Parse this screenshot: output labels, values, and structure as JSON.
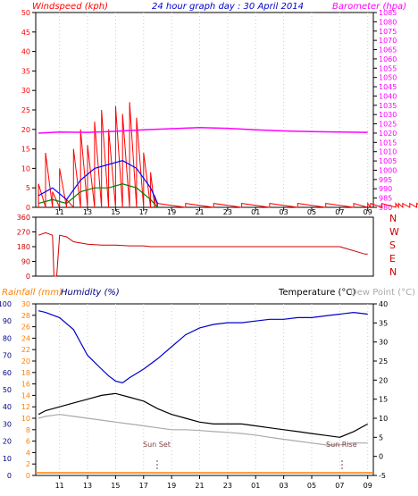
{
  "header": {
    "left_title": "Windspeed (kph)",
    "center_title": "24 hour graph day : 30 April 2014",
    "right_title": "Barometer (hpa)"
  },
  "lower_header": {
    "rainfall": "Rainfall (mm)",
    "humidity": "Humidity (%)",
    "temperature": "Temperature (°C)",
    "dewpoint": "Dew Point (°C)"
  },
  "annotations": {
    "sunset": "Sun Set",
    "sunrise": "Sun Rise"
  },
  "colors": {
    "wind": "#ff0000",
    "gust": "#0000ff",
    "avg": "#008000",
    "barometer": "#ff00ff",
    "direction": "#cc0000",
    "humidity": "#0000cc",
    "temperature": "#000000",
    "dewpoint": "#aaaaaa",
    "rainfall": "#ff8000",
    "axis_left": "#ff0000",
    "axis_right": "#ff00ff",
    "axis_dir": "#cc0000",
    "axis_hum": "#000080",
    "axis_rain": "#ff8000"
  },
  "chart_data": [
    {
      "type": "line",
      "title": "24 hour graph day : 30 April 2014",
      "ylabel": "Windspeed (kph)",
      "y2label": "Barometer (hpa)",
      "xticks": [
        "11",
        "13",
        "15",
        "17",
        "19",
        "21",
        "23",
        "01",
        "03",
        "05",
        "07",
        "09"
      ],
      "ylim": [
        0,
        50
      ],
      "yticks": [
        0,
        5,
        10,
        15,
        20,
        25,
        30,
        35,
        40,
        45,
        50
      ],
      "y2lim": [
        980,
        1085
      ],
      "y2ticks": [
        980,
        985,
        990,
        995,
        1000,
        1005,
        1010,
        1015,
        1020,
        1025,
        1030,
        1035,
        1040,
        1045,
        1050,
        1055,
        1060,
        1065,
        1070,
        1075,
        1080,
        1085
      ],
      "series": [
        {
          "name": "Windspeed (kph)",
          "x": [
            9.5,
            10,
            10.5,
            11,
            11.5,
            12,
            12.5,
            13,
            13.5,
            14,
            14.5,
            15,
            15.5,
            16,
            16.5,
            17,
            17.5,
            17.8,
            18,
            20,
            22,
            24,
            26,
            28,
            30,
            32,
            33,
            33.2,
            34,
            35,
            35.2,
            35.5,
            36,
            36.5,
            37,
            37.5,
            38,
            38.5,
            39.5,
            40,
            40.5,
            41,
            41.5,
            42,
            43,
            44,
            45,
            46,
            47,
            48,
            49,
            50,
            51,
            52,
            53,
            54,
            55,
            56,
            57,
            58,
            59,
            60,
            61,
            62,
            63,
            64,
            65,
            66,
            67,
            68,
            69,
            70,
            71,
            72,
            73,
            74,
            75,
            76,
            77,
            78,
            79,
            80,
            81,
            82,
            83,
            84,
            85,
            86,
            87,
            88,
            89,
            90,
            91,
            92,
            93
          ],
          "y": [
            6,
            14,
            4,
            10,
            2,
            15,
            20,
            16,
            22,
            25,
            20,
            26,
            24,
            27,
            23,
            14,
            9,
            3,
            1,
            1,
            1,
            1,
            1,
            1,
            1,
            1,
            1,
            1,
            1,
            1,
            1,
            1,
            1,
            1,
            1,
            1,
            1,
            1,
            1,
            1,
            1,
            1,
            1,
            1,
            1,
            1,
            1,
            1,
            1,
            1,
            1,
            1,
            1,
            1,
            1,
            1,
            1,
            1,
            1,
            1,
            1,
            1,
            1,
            1,
            1,
            1,
            1,
            1,
            1,
            1,
            1,
            1,
            1,
            1,
            1,
            1,
            1,
            1,
            1,
            1,
            1,
            1,
            1,
            1,
            1,
            1,
            1,
            1,
            1,
            1,
            1,
            1,
            1,
            1,
            1
          ]
        },
        {
          "name": "Gust",
          "x": [
            9.5,
            10.5,
            11.5,
            12.5,
            13.5,
            14.5,
            15.5,
            16.5,
            17.5,
            18
          ],
          "y": [
            3,
            5,
            2,
            7,
            10,
            11,
            12,
            10,
            5,
            1
          ]
        },
        {
          "name": "Average",
          "x": [
            9.5,
            10.5,
            11.5,
            12.5,
            13.5,
            14.5,
            15.5,
            16.5,
            17.5,
            18
          ],
          "y": [
            1,
            2,
            1,
            4,
            5,
            5,
            6,
            5,
            2,
            0
          ]
        },
        {
          "name": "Barometer (hpa)",
          "x": [
            9.5,
            11,
            13,
            15,
            17,
            19,
            21,
            23,
            1,
            3,
            5,
            7,
            9
          ],
          "y": [
            1020,
            1020.6,
            1020.4,
            1021,
            1021.8,
            1022.4,
            1023,
            1022.6,
            1021.8,
            1021.2,
            1020.8,
            1020.6,
            1020.4
          ]
        }
      ]
    },
    {
      "type": "line",
      "title": "",
      "ylabel": "",
      "xticks": [],
      "ylim": [
        0,
        360
      ],
      "yticks": [
        0,
        90,
        180,
        270,
        360
      ],
      "compass": [
        "N",
        "W",
        "S",
        "E",
        "N"
      ],
      "series": [
        {
          "name": "Wind Direction",
          "x": [
            9.5,
            10,
            10.5,
            10.6,
            10.8,
            11,
            11.5,
            12,
            13,
            14,
            15,
            16,
            17,
            17.5,
            18,
            19,
            21,
            23,
            1,
            3,
            5,
            7,
            8.8,
            9
          ],
          "y": [
            250,
            265,
            250,
            0,
            0,
            250,
            240,
            210,
            195,
            190,
            190,
            185,
            185,
            180,
            180,
            180,
            180,
            180,
            180,
            180,
            180,
            180,
            135,
            135
          ]
        }
      ]
    },
    {
      "type": "line",
      "title": "",
      "ylabel": "Humidity (%)",
      "y2label": "Temperature (°C)",
      "xticks": [
        "11",
        "13",
        "15",
        "17",
        "19",
        "21",
        "23",
        "01",
        "03",
        "05",
        "07",
        "09"
      ],
      "ylim": [
        0,
        100
      ],
      "yticks": [
        0,
        10,
        20,
        30,
        40,
        50,
        60,
        70,
        80,
        90,
        100
      ],
      "rain_ticks": [
        0,
        2,
        4,
        6,
        8,
        10,
        12,
        14,
        16,
        18,
        20,
        22,
        24,
        26,
        28,
        30
      ],
      "y2lim": [
        -5,
        40
      ],
      "y2ticks": [
        -5,
        0,
        5,
        10,
        15,
        20,
        25,
        30,
        35,
        40
      ],
      "series": [
        {
          "name": "Humidity (%)",
          "x": [
            9.5,
            10,
            11,
            12,
            13,
            14,
            14.5,
            15,
            15.5,
            16,
            17,
            18,
            19,
            20,
            21,
            22,
            23,
            0,
            1,
            2,
            3,
            4,
            5,
            6,
            7,
            8,
            9
          ],
          "y": [
            96,
            95,
            92,
            85,
            70,
            62,
            58,
            55,
            54,
            57,
            62,
            68,
            75,
            82,
            86,
            88,
            89,
            89,
            90,
            91,
            91,
            92,
            92,
            93,
            94,
            95,
            94
          ]
        },
        {
          "name": "Temperature (°C)",
          "x": [
            9.5,
            10,
            11,
            12,
            13,
            14,
            15,
            16,
            17,
            18,
            19,
            20,
            21,
            22,
            23,
            0,
            1,
            2,
            3,
            4,
            5,
            6,
            7,
            8,
            9
          ],
          "y": [
            11,
            12,
            13,
            14,
            15,
            16,
            16.5,
            15.5,
            14.5,
            12.5,
            11,
            10,
            9,
            8.5,
            8.5,
            8.5,
            8,
            7.5,
            7,
            6.5,
            6,
            5.5,
            5,
            6.5,
            8.5
          ]
        },
        {
          "name": "Dew Point (°C)",
          "x": [
            9.5,
            10,
            11,
            12,
            13,
            14,
            15,
            16,
            17,
            18,
            19,
            20,
            21,
            22,
            23,
            0,
            1,
            2,
            3,
            4,
            5,
            6,
            7,
            8,
            9
          ],
          "y": [
            10,
            10.5,
            11,
            10.5,
            10,
            9.5,
            9,
            8.5,
            8,
            7.5,
            7,
            7,
            6.8,
            6.5,
            6.3,
            6,
            5.6,
            5,
            4.5,
            4,
            3.5,
            3,
            3,
            3.5,
            3.5
          ]
        },
        {
          "name": "Rainfall (mm)",
          "x": [
            9.5,
            9
          ],
          "y": [
            0,
            0
          ]
        }
      ]
    }
  ]
}
